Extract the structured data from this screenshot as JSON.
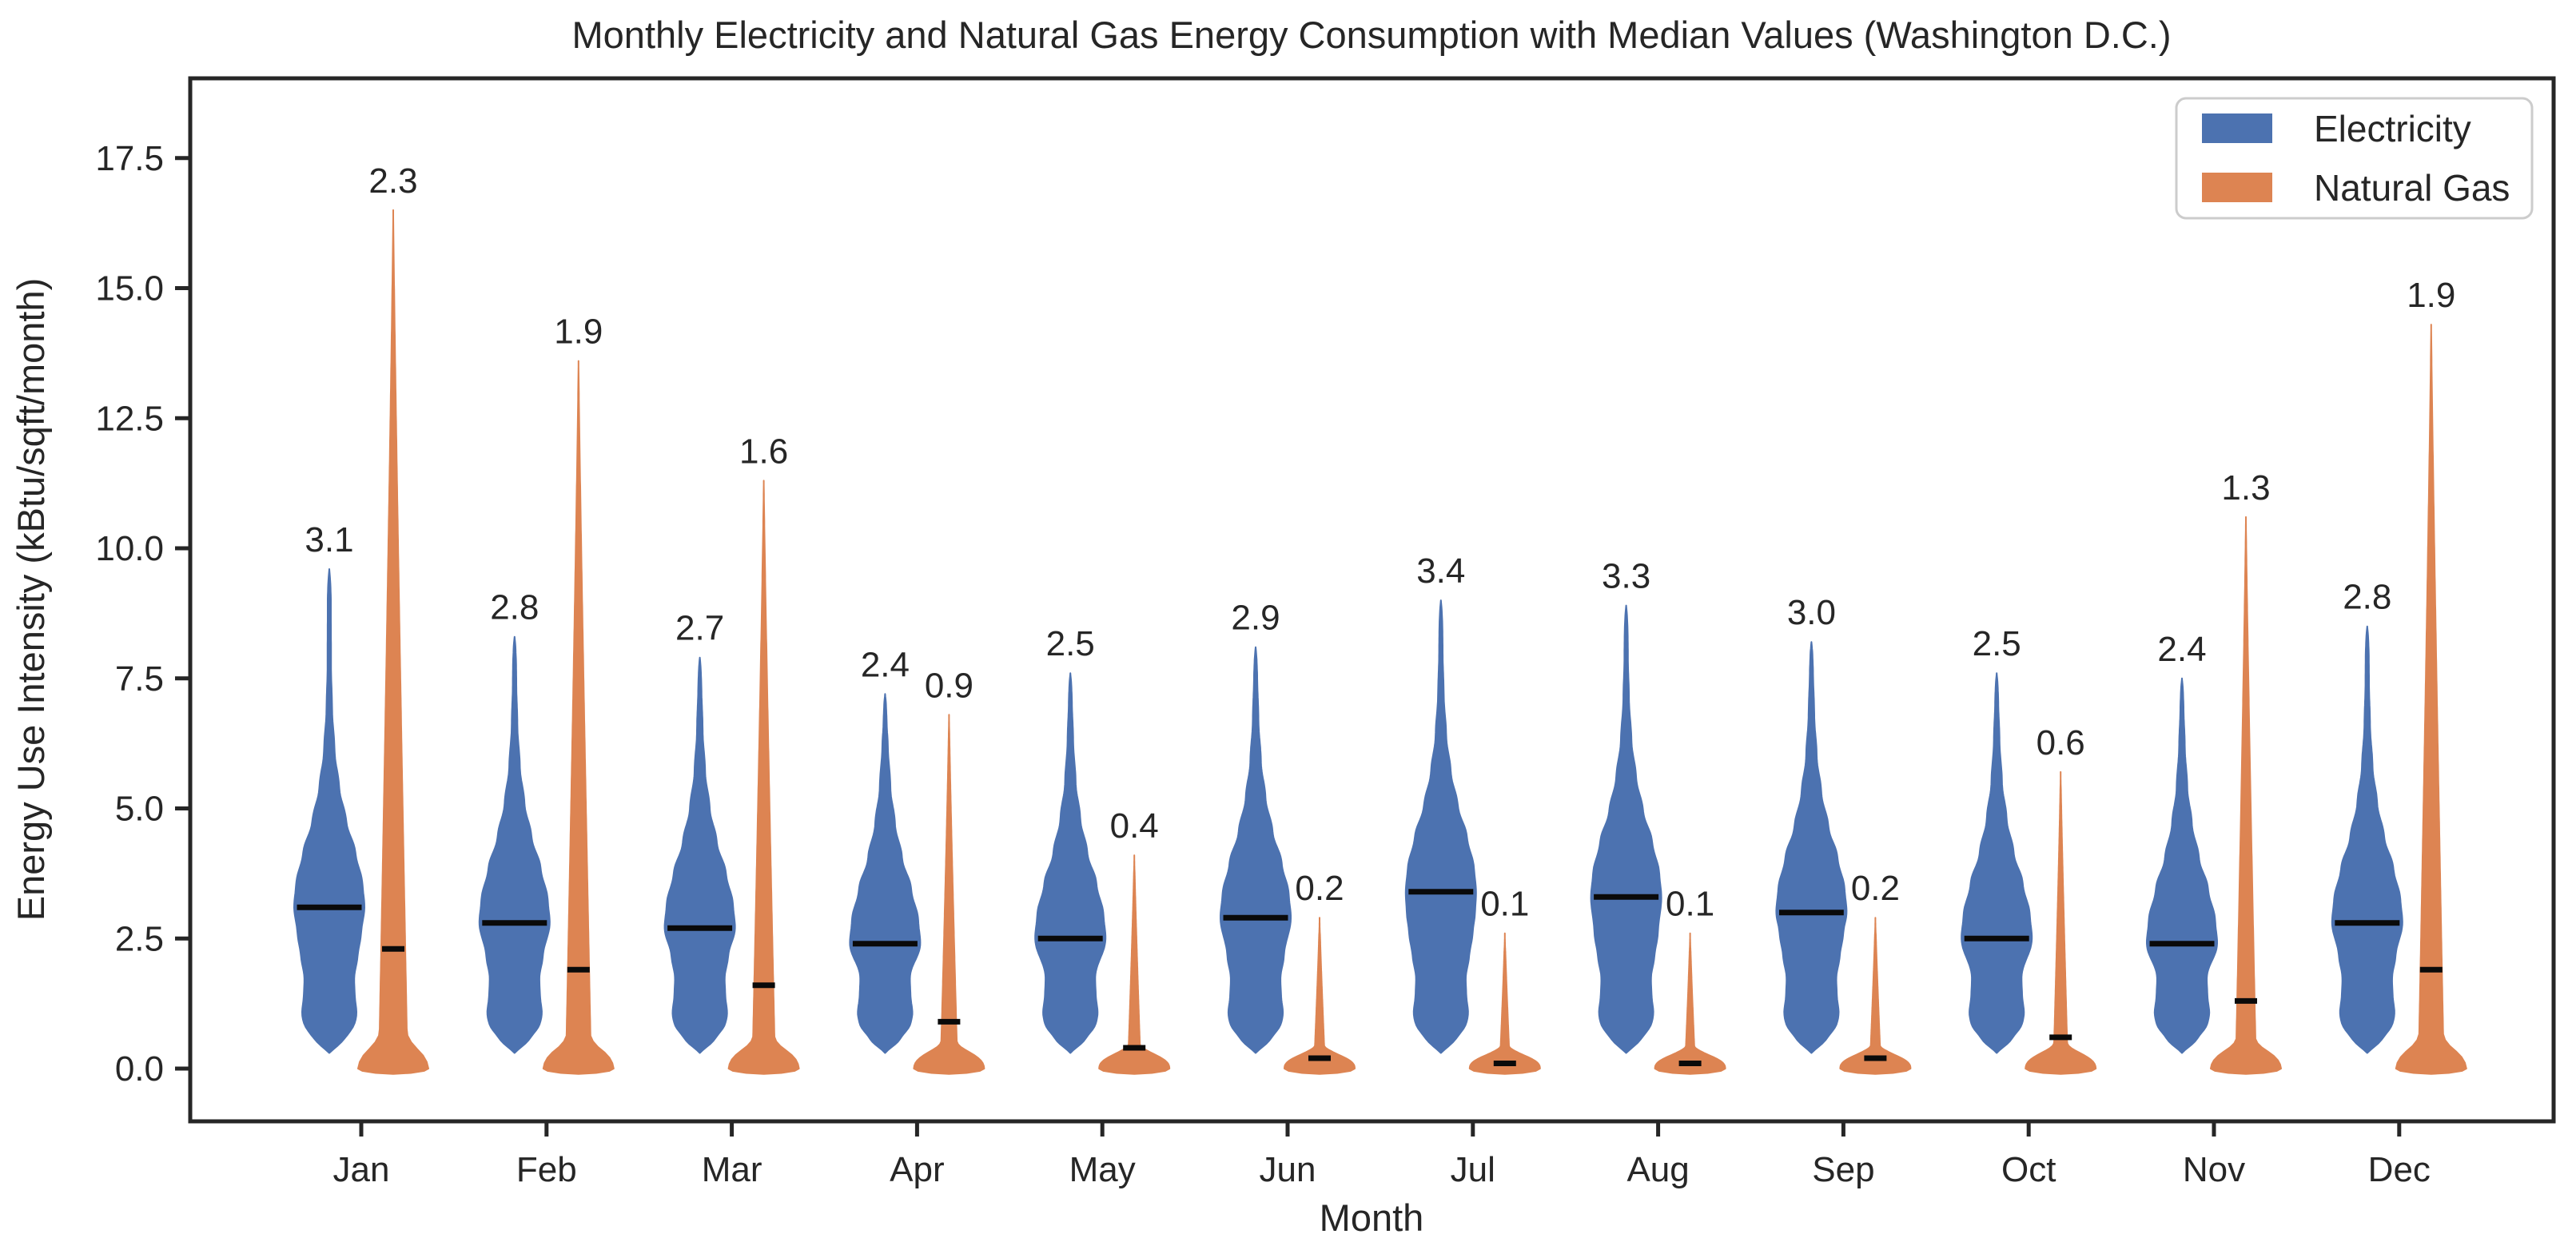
{
  "title": "Monthly Electricity and Natural Gas Energy Consumption with Median Values (Washington D.C.)",
  "axes": {
    "x_label": "Month",
    "y_label": "Energy Use Intensity (kBtu/sqft/month)",
    "y_tick_labels": [
      "0.0",
      "2.5",
      "5.0",
      "7.5",
      "10.0",
      "12.5",
      "15.0",
      "17.5"
    ]
  },
  "legend": {
    "items": [
      {
        "label": "Electricity",
        "color": "#4C72B0"
      },
      {
        "label": "Natural Gas",
        "color": "#DD8452"
      }
    ]
  },
  "colors": {
    "electricity": "#4C72B0",
    "natural_gas": "#DD8452",
    "median_line": "#0a0a0a",
    "frame": "#262626",
    "text": "#262626",
    "legend_border": "#cccccc"
  },
  "chart_data": {
    "type": "violin",
    "title": "Monthly Electricity and Natural Gas Energy Consumption with Median Values (Washington D.C.)",
    "xlabel": "Month",
    "ylabel": "Energy Use Intensity (kBtu/sqft/month)",
    "ylim": [
      -1.1,
      19.0
    ],
    "yticks": [
      0.0,
      2.5,
      5.0,
      7.5,
      10.0,
      12.5,
      15.0,
      17.5
    ],
    "grid": false,
    "legend_position": "upper right",
    "annotation": "median value labeled above each violin",
    "categories": [
      "Jan",
      "Feb",
      "Mar",
      "Apr",
      "May",
      "Jun",
      "Jul",
      "Aug",
      "Sep",
      "Oct",
      "Nov",
      "Dec"
    ],
    "series": [
      {
        "name": "Electricity",
        "color": "#4C72B0",
        "medians": [
          3.1,
          2.8,
          2.7,
          2.4,
          2.5,
          2.9,
          3.4,
          3.3,
          3.0,
          2.5,
          2.4,
          2.8
        ],
        "max_values": [
          9.6,
          8.3,
          7.9,
          7.2,
          7.6,
          8.1,
          9.0,
          8.9,
          8.2,
          7.6,
          7.5,
          8.5
        ],
        "min_values": [
          0.3,
          0.3,
          0.3,
          0.3,
          0.3,
          0.3,
          0.3,
          0.3,
          0.3,
          0.3,
          0.3,
          0.3
        ]
      },
      {
        "name": "Natural Gas",
        "color": "#DD8452",
        "medians": [
          2.3,
          1.9,
          1.6,
          0.9,
          0.4,
          0.2,
          0.1,
          0.1,
          0.2,
          0.6,
          1.3,
          1.9
        ],
        "max_values": [
          16.5,
          13.6,
          11.3,
          6.8,
          4.1,
          2.9,
          2.6,
          2.6,
          2.9,
          5.7,
          10.6,
          14.3
        ],
        "min_values": [
          0,
          0,
          0,
          0,
          0,
          0,
          0,
          0,
          0,
          0,
          0,
          0
        ]
      }
    ]
  }
}
